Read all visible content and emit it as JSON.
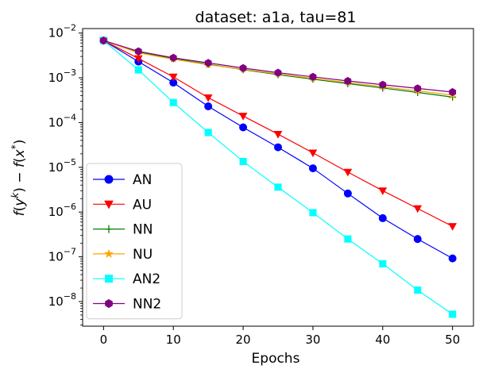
{
  "chart_data": {
    "type": "line",
    "title": "dataset: a1a, tau=81",
    "xlabel": "Epochs",
    "ylabel": "f(y^k) − f(x*)",
    "yscale": "log",
    "xlim": [
      -3,
      53
    ],
    "ylim_log10": [
      -8.55,
      -1.9
    ],
    "x_ticks": [
      0,
      10,
      20,
      30,
      40,
      50
    ],
    "x_tick_labels": [
      "0",
      "10",
      "20",
      "30",
      "40",
      "50"
    ],
    "y_tick_exponents": [
      -8,
      -7,
      -6,
      -5,
      -4,
      -3,
      -2
    ],
    "y_tick_labels": [
      "10−8",
      "10−7",
      "10−6",
      "10−5",
      "10−4",
      "10−3",
      "10−2"
    ],
    "legend_position": "lower-left",
    "x": [
      0,
      5,
      10,
      15,
      20,
      25,
      30,
      35,
      40,
      45,
      50
    ],
    "series": [
      {
        "name": "AN",
        "color": "#0000ff",
        "marker": "circle",
        "values": [
          0.0068,
          0.0023,
          0.00078,
          0.00023,
          7.8e-05,
          2.8e-05,
          9.5e-06,
          2.6e-06,
          7.3e-07,
          2.5e-07,
          9.2e-08
        ]
      },
      {
        "name": "AU",
        "color": "#ff0000",
        "marker": "triangle-down",
        "values": [
          0.0068,
          0.0027,
          0.00105,
          0.00036,
          0.00014,
          5.5e-05,
          2.1e-05,
          7.8e-06,
          3e-06,
          1.2e-06,
          4.8e-07
        ]
      },
      {
        "name": "NN",
        "color": "#008000",
        "marker": "plus",
        "values": [
          0.0068,
          0.0038,
          0.0027,
          0.002,
          0.00152,
          0.00118,
          0.00093,
          0.00074,
          0.00059,
          0.00047,
          0.00037
        ]
      },
      {
        "name": "NU",
        "color": "#ffa500",
        "marker": "star",
        "values": [
          0.0068,
          0.0036,
          0.0026,
          0.00195,
          0.00155,
          0.00122,
          0.00097,
          0.00078,
          0.00063,
          0.00051,
          0.00041
        ]
      },
      {
        "name": "AN2",
        "color": "#00ffff",
        "marker": "square",
        "values": [
          0.0068,
          0.0015,
          0.00028,
          6e-05,
          1.35e-05,
          3.6e-06,
          9.7e-07,
          2.5e-07,
          7e-08,
          1.8e-08,
          5.2e-09
        ]
      },
      {
        "name": "NN2",
        "color": "#800080",
        "marker": "hexagon",
        "values": [
          0.0068,
          0.0039,
          0.0028,
          0.00215,
          0.00165,
          0.0013,
          0.00105,
          0.00085,
          0.0007,
          0.00058,
          0.00048
        ]
      }
    ]
  }
}
